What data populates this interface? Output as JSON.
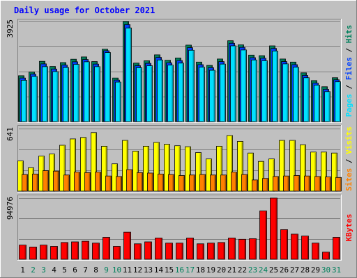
{
  "title": "Daily usage for October 2021",
  "colors": {
    "background": "#c0c0c0",
    "panel": "#c0c0c0",
    "grid": "#808080",
    "title": "#0000ff",
    "hits": "#00805c",
    "files": "#0040ff",
    "pages": "#00e0ff",
    "visits": "#ffff00",
    "sites": "#ff8000",
    "kbytes": "#ff0000",
    "weekend_day": "#00805c",
    "weekday": "#000000"
  },
  "chart_data": [
    {
      "type": "bar",
      "panel": "hits-files-pages",
      "y_max_label": "3925",
      "ylim": [
        0,
        3925
      ],
      "legend": [
        "Pages",
        "Files",
        "Hits"
      ],
      "categories": [
        "1",
        "2",
        "3",
        "4",
        "5",
        "6",
        "7",
        "8",
        "9",
        "10",
        "11",
        "12",
        "13",
        "14",
        "15",
        "16",
        "17",
        "18",
        "19",
        "20",
        "21",
        "22",
        "23",
        "24",
        "25",
        "26",
        "27",
        "28",
        "29",
        "30",
        "31"
      ],
      "series": [
        {
          "name": "Hits",
          "color_key": "hits",
          "values": [
            1790,
            1930,
            2350,
            2150,
            2300,
            2430,
            2520,
            2340,
            2820,
            1700,
            3900,
            2280,
            2370,
            2600,
            2390,
            2480,
            2980,
            2320,
            2190,
            2440,
            3150,
            2990,
            2590,
            2570,
            2950,
            2440,
            2320,
            1900,
            1600,
            1360,
            1710
          ]
        },
        {
          "name": "Files",
          "color_key": "files",
          "values": [
            1700,
            1850,
            2250,
            2050,
            2200,
            2330,
            2420,
            2240,
            2760,
            1620,
            3780,
            2180,
            2270,
            2500,
            2290,
            2380,
            2880,
            2220,
            2100,
            2340,
            3050,
            2890,
            2490,
            2470,
            2850,
            2340,
            2220,
            1800,
            1500,
            1260,
            1630
          ]
        },
        {
          "name": "Pages",
          "color_key": "pages",
          "values": [
            1610,
            1760,
            2140,
            1950,
            2110,
            2230,
            2330,
            2140,
            2690,
            1540,
            3650,
            2100,
            2180,
            2400,
            2200,
            2280,
            2780,
            2120,
            2000,
            2240,
            2950,
            2790,
            2400,
            2370,
            2750,
            2250,
            2120,
            1710,
            1420,
            1170,
            1550
          ]
        }
      ]
    },
    {
      "type": "bar",
      "panel": "visits-sites",
      "y_max_label": "641",
      "ylim": [
        0,
        641
      ],
      "legend": [
        "Sites",
        "Visits"
      ],
      "categories": [
        "1",
        "2",
        "3",
        "4",
        "5",
        "6",
        "7",
        "8",
        "9",
        "10",
        "11",
        "12",
        "13",
        "14",
        "15",
        "16",
        "17",
        "18",
        "19",
        "20",
        "21",
        "22",
        "23",
        "24",
        "25",
        "26",
        "27",
        "28",
        "29",
        "30",
        "31"
      ],
      "series": [
        {
          "name": "Visits",
          "color_key": "visits",
          "values": [
            310,
            240,
            360,
            380,
            470,
            535,
            550,
            600,
            460,
            280,
            520,
            410,
            460,
            500,
            480,
            465,
            455,
            395,
            330,
            460,
            570,
            510,
            390,
            305,
            330,
            520,
            520,
            475,
            400,
            400,
            390
          ]
        },
        {
          "name": "Sites",
          "color_key": "sites",
          "values": [
            170,
            175,
            210,
            205,
            165,
            195,
            190,
            195,
            155,
            150,
            220,
            190,
            185,
            175,
            170,
            160,
            165,
            170,
            165,
            165,
            195,
            170,
            115,
            130,
            150,
            155,
            160,
            155,
            150,
            145,
            140
          ]
        }
      ]
    },
    {
      "type": "bar",
      "panel": "kbytes",
      "y_max_label": "94976",
      "ylim": [
        0,
        94976
      ],
      "legend": [
        "KBytes"
      ],
      "categories": [
        "1",
        "2",
        "3",
        "4",
        "5",
        "6",
        "7",
        "8",
        "9",
        "10",
        "11",
        "12",
        "13",
        "14",
        "15",
        "16",
        "17",
        "18",
        "19",
        "20",
        "21",
        "22",
        "23",
        "24",
        "25",
        "26",
        "27",
        "28",
        "29",
        "30",
        "31"
      ],
      "series": [
        {
          "name": "KBytes",
          "color_key": "kbytes",
          "values": [
            22000,
            19000,
            22000,
            20000,
            26000,
            27000,
            28000,
            25000,
            34000,
            20000,
            42000,
            24000,
            27000,
            33000,
            25000,
            25000,
            33000,
            24000,
            25000,
            26000,
            33000,
            31000,
            32000,
            75000,
            94976,
            46000,
            39000,
            36000,
            25000,
            11000,
            34000
          ]
        }
      ]
    }
  ],
  "weekend_days": [
    2,
    3,
    9,
    10,
    16,
    17,
    23,
    24,
    30,
    31
  ]
}
